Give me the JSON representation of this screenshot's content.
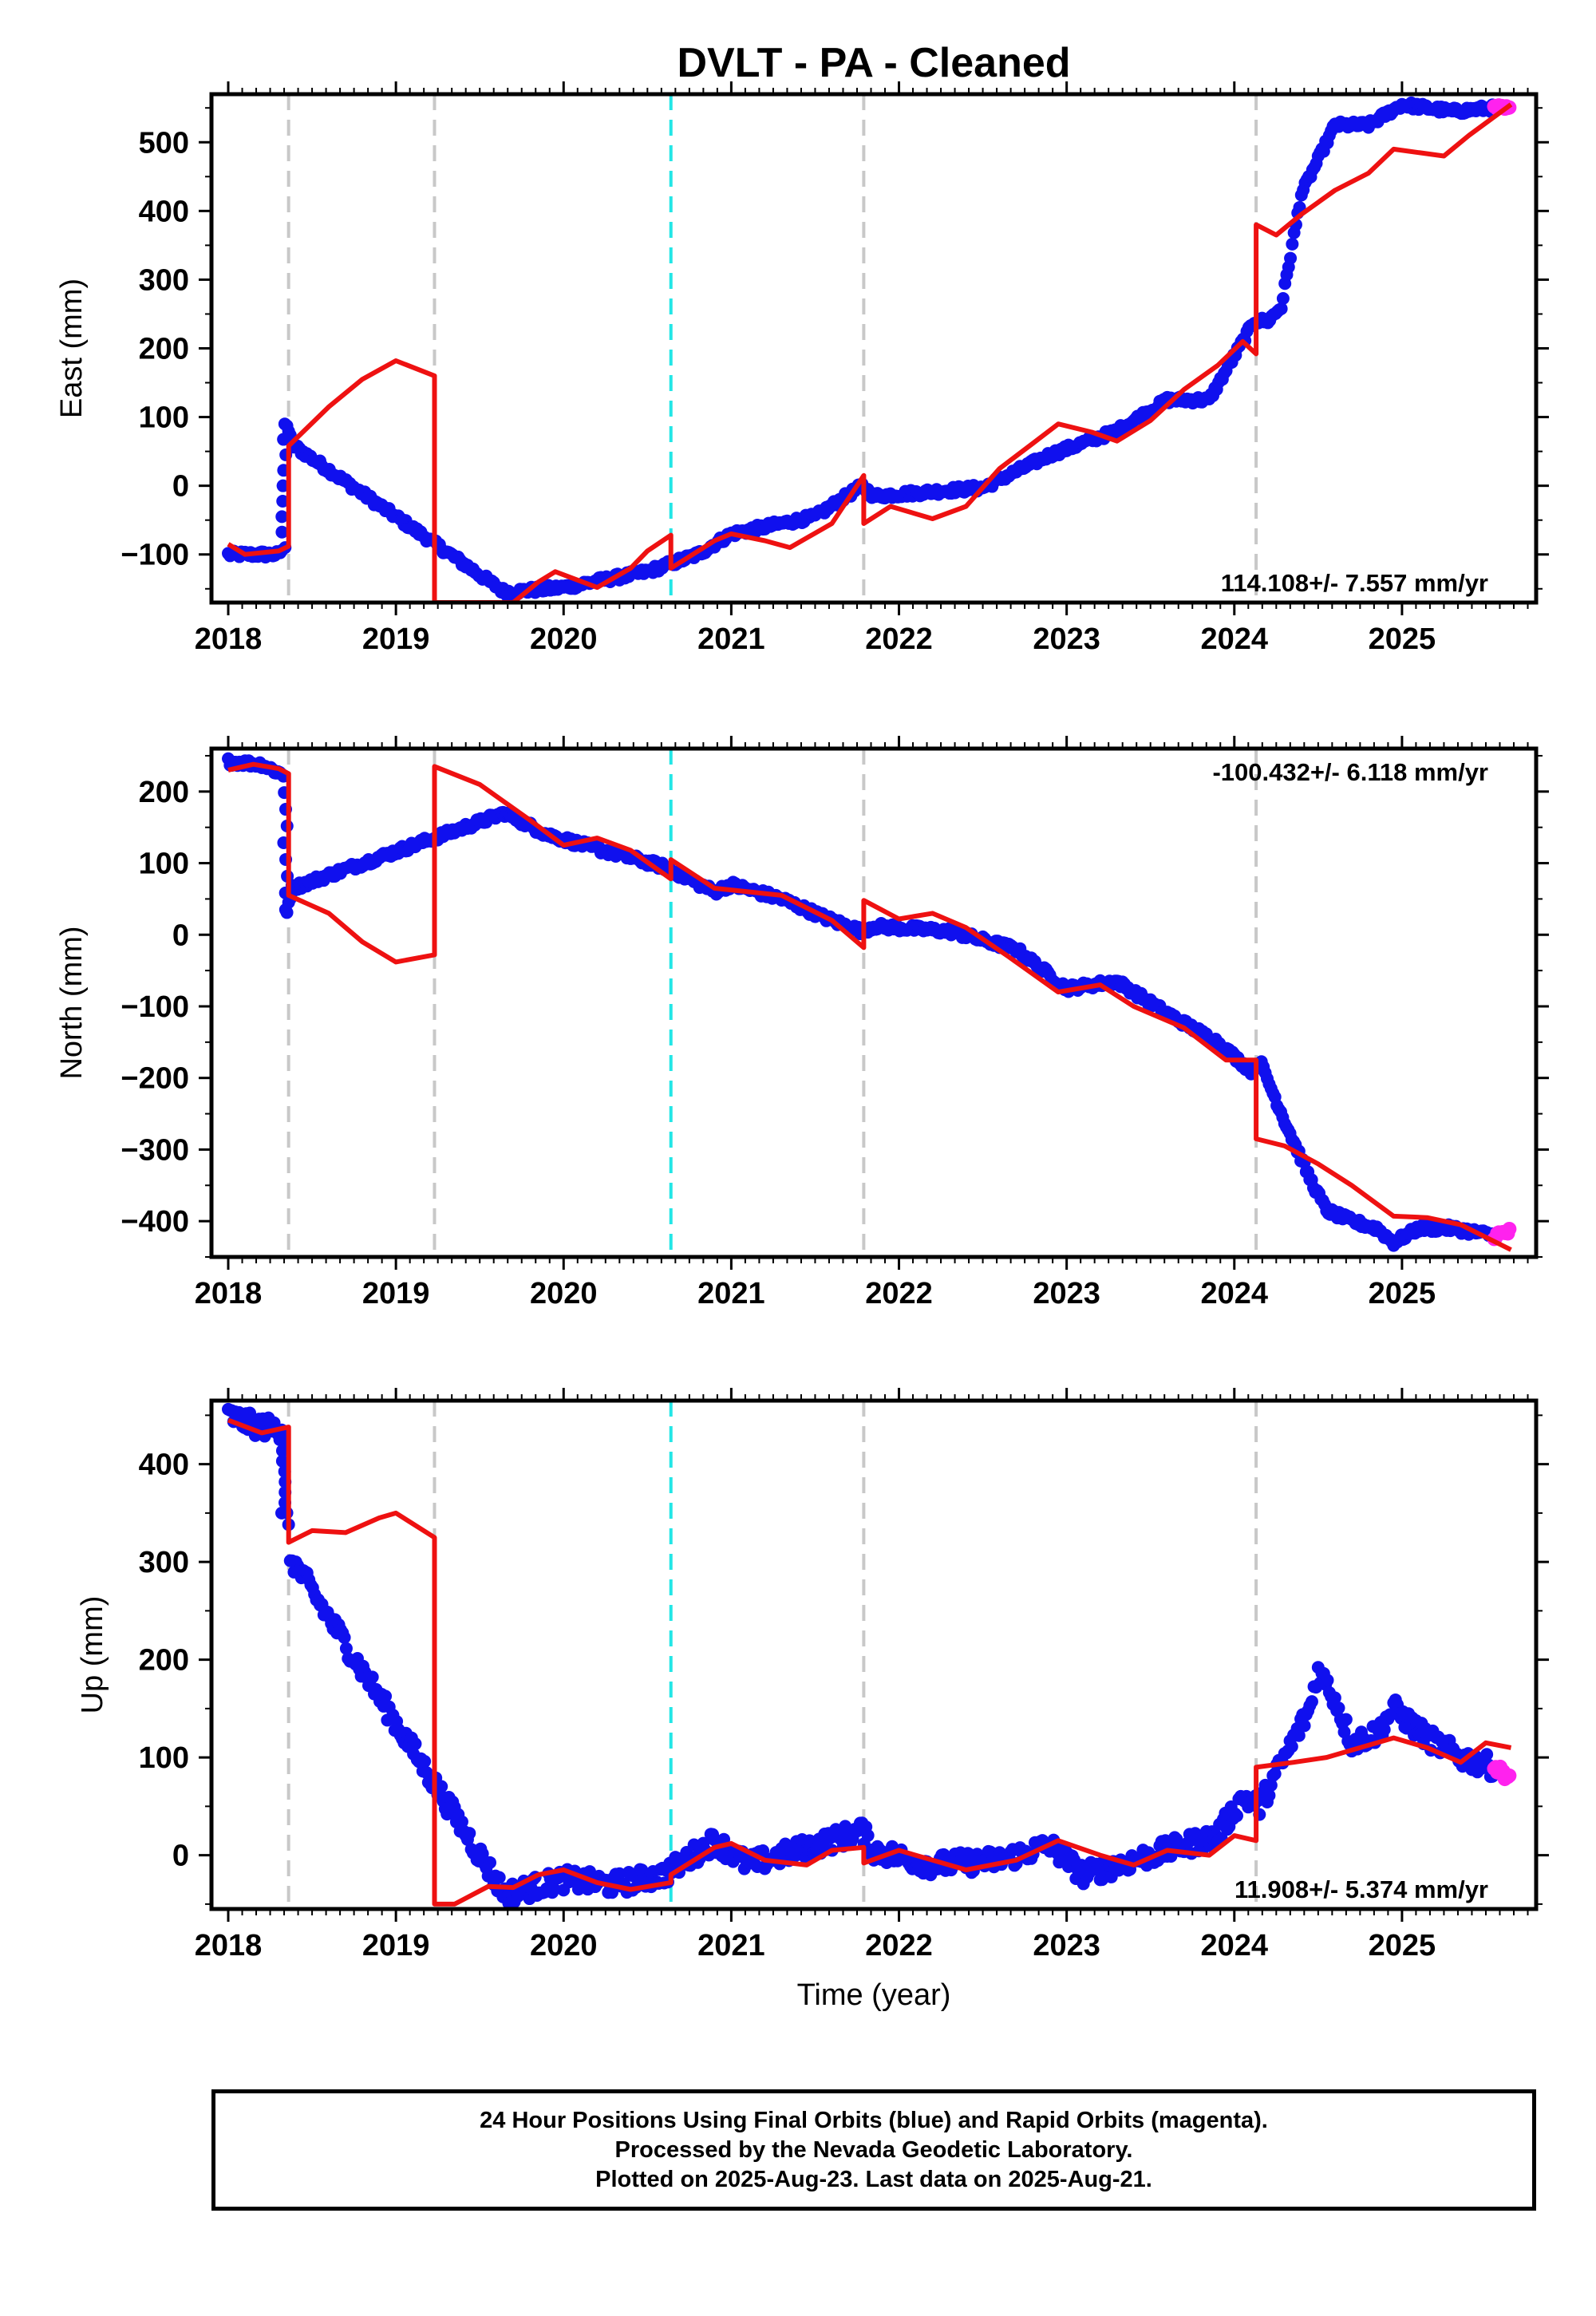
{
  "title": "DVLT  - PA - Cleaned",
  "x_axis_label": "Time (year)",
  "x_tick_labels": [
    "2018",
    "2019",
    "2020",
    "2021",
    "2022",
    "2023",
    "2024",
    "2025"
  ],
  "colors": {
    "final_orbits": "#1010ee",
    "rapid_orbits": "#ff22ee",
    "model": "#ee1111",
    "equipment_change": "#c8c8c8",
    "earthquake": "#22e6e6",
    "frame": "#000000"
  },
  "chart_data": [
    {
      "type": "scatter",
      "ylabel": "East (mm)",
      "rate_label": "114.108+/- 7.557 mm/yr",
      "xlim": [
        2017.9,
        2025.8
      ],
      "ylim": [
        -170,
        570
      ],
      "yticks": [
        -100,
        0,
        100,
        200,
        300,
        400,
        500
      ],
      "ytick_labels": [
        "−100",
        "0",
        "100",
        "200",
        "300",
        "400",
        "500"
      ],
      "grey_lines": [
        2018.36,
        2019.23,
        2021.79,
        2024.13
      ],
      "cyan_lines": [
        2020.64
      ],
      "final_orbits": [
        [
          2018.0,
          -100
        ],
        [
          2018.3,
          -100
        ],
        [
          2018.33,
          -90
        ],
        [
          2018.35,
          90
        ],
        [
          2018.38,
          60
        ],
        [
          2019.65,
          -155
        ],
        [
          2020.0,
          -148
        ],
        [
          2020.5,
          -125
        ],
        [
          2020.8,
          -100
        ],
        [
          2021.0,
          -70
        ],
        [
          2021.5,
          -45
        ],
        [
          2021.78,
          0
        ],
        [
          2021.85,
          -15
        ],
        [
          2022.5,
          -3
        ],
        [
          2022.9,
          45
        ],
        [
          2023.3,
          80
        ],
        [
          2023.6,
          125
        ],
        [
          2023.85,
          125
        ],
        [
          2024.12,
          240
        ],
        [
          2024.2,
          240
        ],
        [
          2024.28,
          260
        ],
        [
          2024.4,
          425
        ],
        [
          2024.6,
          525
        ],
        [
          2024.8,
          525
        ],
        [
          2025.0,
          555
        ],
        [
          2025.3,
          545
        ],
        [
          2025.55,
          550
        ]
      ],
      "rapid_orbits": [
        [
          2025.55,
          550
        ],
        [
          2025.64,
          548
        ]
      ],
      "model": [
        [
          2018.0,
          -85
        ],
        [
          2018.1,
          -100
        ],
        [
          2018.3,
          -95
        ],
        [
          2018.36,
          -88
        ],
        [
          2018.36,
          58
        ],
        [
          2018.6,
          115
        ],
        [
          2018.8,
          155
        ],
        [
          2019.0,
          182
        ],
        [
          2019.23,
          160
        ],
        [
          2019.23,
          -170
        ],
        [
          2019.7,
          -170
        ],
        [
          2019.85,
          -140
        ],
        [
          2019.95,
          -125
        ],
        [
          2020.2,
          -148
        ],
        [
          2020.4,
          -120
        ],
        [
          2020.5,
          -95
        ],
        [
          2020.64,
          -72
        ],
        [
          2020.64,
          -120
        ],
        [
          2020.9,
          -80
        ],
        [
          2021.0,
          -70
        ],
        [
          2021.2,
          -80
        ],
        [
          2021.35,
          -90
        ],
        [
          2021.6,
          -55
        ],
        [
          2021.79,
          15
        ],
        [
          2021.79,
          -55
        ],
        [
          2021.95,
          -30
        ],
        [
          2022.2,
          -48
        ],
        [
          2022.4,
          -30
        ],
        [
          2022.6,
          25
        ],
        [
          2022.8,
          62
        ],
        [
          2022.95,
          90
        ],
        [
          2023.15,
          78
        ],
        [
          2023.3,
          65
        ],
        [
          2023.5,
          95
        ],
        [
          2023.7,
          140
        ],
        [
          2023.9,
          175
        ],
        [
          2024.05,
          210
        ],
        [
          2024.13,
          192
        ],
        [
          2024.13,
          380
        ],
        [
          2024.25,
          365
        ],
        [
          2024.4,
          395
        ],
        [
          2024.6,
          430
        ],
        [
          2024.8,
          455
        ],
        [
          2024.95,
          490
        ],
        [
          2025.25,
          480
        ],
        [
          2025.4,
          510
        ],
        [
          2025.65,
          555
        ]
      ]
    },
    {
      "type": "scatter",
      "ylabel": "North (mm)",
      "rate_label": "-100.432+/- 6.118 mm/yr",
      "xlim": [
        2017.9,
        2025.8
      ],
      "ylim": [
        -450,
        260
      ],
      "yticks": [
        -400,
        -300,
        -200,
        -100,
        0,
        100,
        200
      ],
      "ytick_labels": [
        "−400",
        "−300",
        "−200",
        "−100",
        "0",
        "100",
        "200"
      ],
      "grey_lines": [
        2018.36,
        2019.23,
        2021.79,
        2024.13
      ],
      "cyan_lines": [
        2020.64
      ],
      "final_orbits": [
        [
          2018.0,
          242
        ],
        [
          2018.2,
          238
        ],
        [
          2018.34,
          222
        ],
        [
          2018.35,
          35
        ],
        [
          2018.38,
          65
        ],
        [
          2019.65,
          170
        ],
        [
          2019.9,
          140
        ],
        [
          2020.2,
          120
        ],
        [
          2020.6,
          95
        ],
        [
          2020.9,
          60
        ],
        [
          2021.0,
          70
        ],
        [
          2021.3,
          50
        ],
        [
          2021.6,
          20
        ],
        [
          2021.78,
          5
        ],
        [
          2021.85,
          12
        ],
        [
          2022.3,
          5
        ],
        [
          2022.7,
          -20
        ],
        [
          2023.0,
          -75
        ],
        [
          2023.3,
          -65
        ],
        [
          2023.6,
          -110
        ],
        [
          2023.9,
          -150
        ],
        [
          2024.1,
          -190
        ],
        [
          2024.15,
          -175
        ],
        [
          2024.3,
          -260
        ],
        [
          2024.45,
          -340
        ],
        [
          2024.55,
          -385
        ],
        [
          2024.7,
          -400
        ],
        [
          2024.85,
          -410
        ],
        [
          2024.95,
          -430
        ],
        [
          2025.1,
          -410
        ],
        [
          2025.3,
          -410
        ],
        [
          2025.55,
          -420
        ]
      ],
      "rapid_orbits": [
        [
          2025.55,
          -420
        ],
        [
          2025.64,
          -415
        ]
      ],
      "model": [
        [
          2018.0,
          230
        ],
        [
          2018.15,
          238
        ],
        [
          2018.3,
          232
        ],
        [
          2018.36,
          225
        ],
        [
          2018.36,
          55
        ],
        [
          2018.6,
          30
        ],
        [
          2018.8,
          -10
        ],
        [
          2019.0,
          -38
        ],
        [
          2019.23,
          -28
        ],
        [
          2019.23,
          235
        ],
        [
          2019.5,
          210
        ],
        [
          2019.8,
          160
        ],
        [
          2020.0,
          125
        ],
        [
          2020.2,
          135
        ],
        [
          2020.4,
          118
        ],
        [
          2020.64,
          78
        ],
        [
          2020.64,
          105
        ],
        [
          2020.9,
          65
        ],
        [
          2021.1,
          60
        ],
        [
          2021.3,
          55
        ],
        [
          2021.6,
          20
        ],
        [
          2021.79,
          -18
        ],
        [
          2021.79,
          48
        ],
        [
          2022.0,
          22
        ],
        [
          2022.2,
          30
        ],
        [
          2022.4,
          10
        ],
        [
          2022.65,
          -30
        ],
        [
          2022.95,
          -80
        ],
        [
          2023.2,
          -70
        ],
        [
          2023.4,
          -100
        ],
        [
          2023.7,
          -130
        ],
        [
          2023.95,
          -175
        ],
        [
          2024.13,
          -175
        ],
        [
          2024.13,
          -285
        ],
        [
          2024.3,
          -295
        ],
        [
          2024.5,
          -320
        ],
        [
          2024.7,
          -350
        ],
        [
          2024.95,
          -393
        ],
        [
          2025.15,
          -395
        ],
        [
          2025.35,
          -405
        ],
        [
          2025.65,
          -440
        ]
      ]
    },
    {
      "type": "scatter",
      "ylabel": "Up (mm)",
      "rate_label": "11.908+/- 5.374 mm/yr",
      "xlim": [
        2017.9,
        2025.8
      ],
      "ylim": [
        -55,
        465
      ],
      "yticks": [
        0,
        100,
        200,
        300,
        400
      ],
      "ytick_labels": [
        "0",
        "100",
        "200",
        "300",
        "400"
      ],
      "grey_lines": [
        2018.36,
        2019.23,
        2021.79,
        2024.13
      ],
      "cyan_lines": [
        2020.64
      ],
      "final_orbits": [
        [
          2018.0,
          450
        ],
        [
          2018.15,
          440
        ],
        [
          2018.33,
          435
        ],
        [
          2018.35,
          350
        ],
        [
          2018.37,
          305
        ],
        [
          2019.65,
          -40
        ],
        [
          2020.0,
          -25
        ],
        [
          2020.3,
          -30
        ],
        [
          2020.6,
          -20
        ],
        [
          2020.9,
          15
        ],
        [
          2021.1,
          -10
        ],
        [
          2021.4,
          5
        ],
        [
          2021.78,
          25
        ],
        [
          2021.85,
          5
        ],
        [
          2022.2,
          -10
        ],
        [
          2022.6,
          -5
        ],
        [
          2022.9,
          10
        ],
        [
          2023.1,
          -20
        ],
        [
          2023.5,
          0
        ],
        [
          2023.9,
          20
        ],
        [
          2024.05,
          60
        ],
        [
          2024.15,
          50
        ],
        [
          2024.3,
          100
        ],
        [
          2024.45,
          150
        ],
        [
          2024.5,
          190
        ],
        [
          2024.6,
          160
        ],
        [
          2024.7,
          115
        ],
        [
          2024.85,
          125
        ],
        [
          2024.95,
          150
        ],
        [
          2025.15,
          120
        ],
        [
          2025.35,
          100
        ],
        [
          2025.55,
          90
        ]
      ],
      "rapid_orbits": [
        [
          2025.55,
          90
        ],
        [
          2025.64,
          80
        ]
      ],
      "model": [
        [
          2018.0,
          445
        ],
        [
          2018.2,
          432
        ],
        [
          2018.36,
          438
        ],
        [
          2018.36,
          320
        ],
        [
          2018.5,
          332
        ],
        [
          2018.7,
          330
        ],
        [
          2018.9,
          345
        ],
        [
          2019.0,
          350
        ],
        [
          2019.23,
          325
        ],
        [
          2019.23,
          -50
        ],
        [
          2019.35,
          -50
        ],
        [
          2019.55,
          -32
        ],
        [
          2019.7,
          -33
        ],
        [
          2019.85,
          -20
        ],
        [
          2020.0,
          -15
        ],
        [
          2020.2,
          -28
        ],
        [
          2020.4,
          -35
        ],
        [
          2020.64,
          -28
        ],
        [
          2020.64,
          -20
        ],
        [
          2020.9,
          8
        ],
        [
          2021.0,
          12
        ],
        [
          2021.2,
          -5
        ],
        [
          2021.45,
          -10
        ],
        [
          2021.6,
          5
        ],
        [
          2021.79,
          8
        ],
        [
          2021.79,
          -8
        ],
        [
          2022.0,
          5
        ],
        [
          2022.2,
          -5
        ],
        [
          2022.4,
          -15
        ],
        [
          2022.7,
          -5
        ],
        [
          2022.95,
          15
        ],
        [
          2023.2,
          0
        ],
        [
          2023.4,
          -10
        ],
        [
          2023.6,
          5
        ],
        [
          2023.85,
          0
        ],
        [
          2024.0,
          20
        ],
        [
          2024.13,
          15
        ],
        [
          2024.13,
          90
        ],
        [
          2024.35,
          95
        ],
        [
          2024.55,
          100
        ],
        [
          2024.75,
          110
        ],
        [
          2024.95,
          120
        ],
        [
          2025.15,
          110
        ],
        [
          2025.35,
          95
        ],
        [
          2025.5,
          115
        ],
        [
          2025.65,
          110
        ]
      ]
    }
  ],
  "footer": {
    "line1": "24 Hour Positions Using Final Orbits (blue) and Rapid Orbits (magenta).",
    "line2": "Processed by the Nevada Geodetic Laboratory.",
    "line3": "Plotted on 2025-Aug-23. Last data on 2025-Aug-21."
  }
}
